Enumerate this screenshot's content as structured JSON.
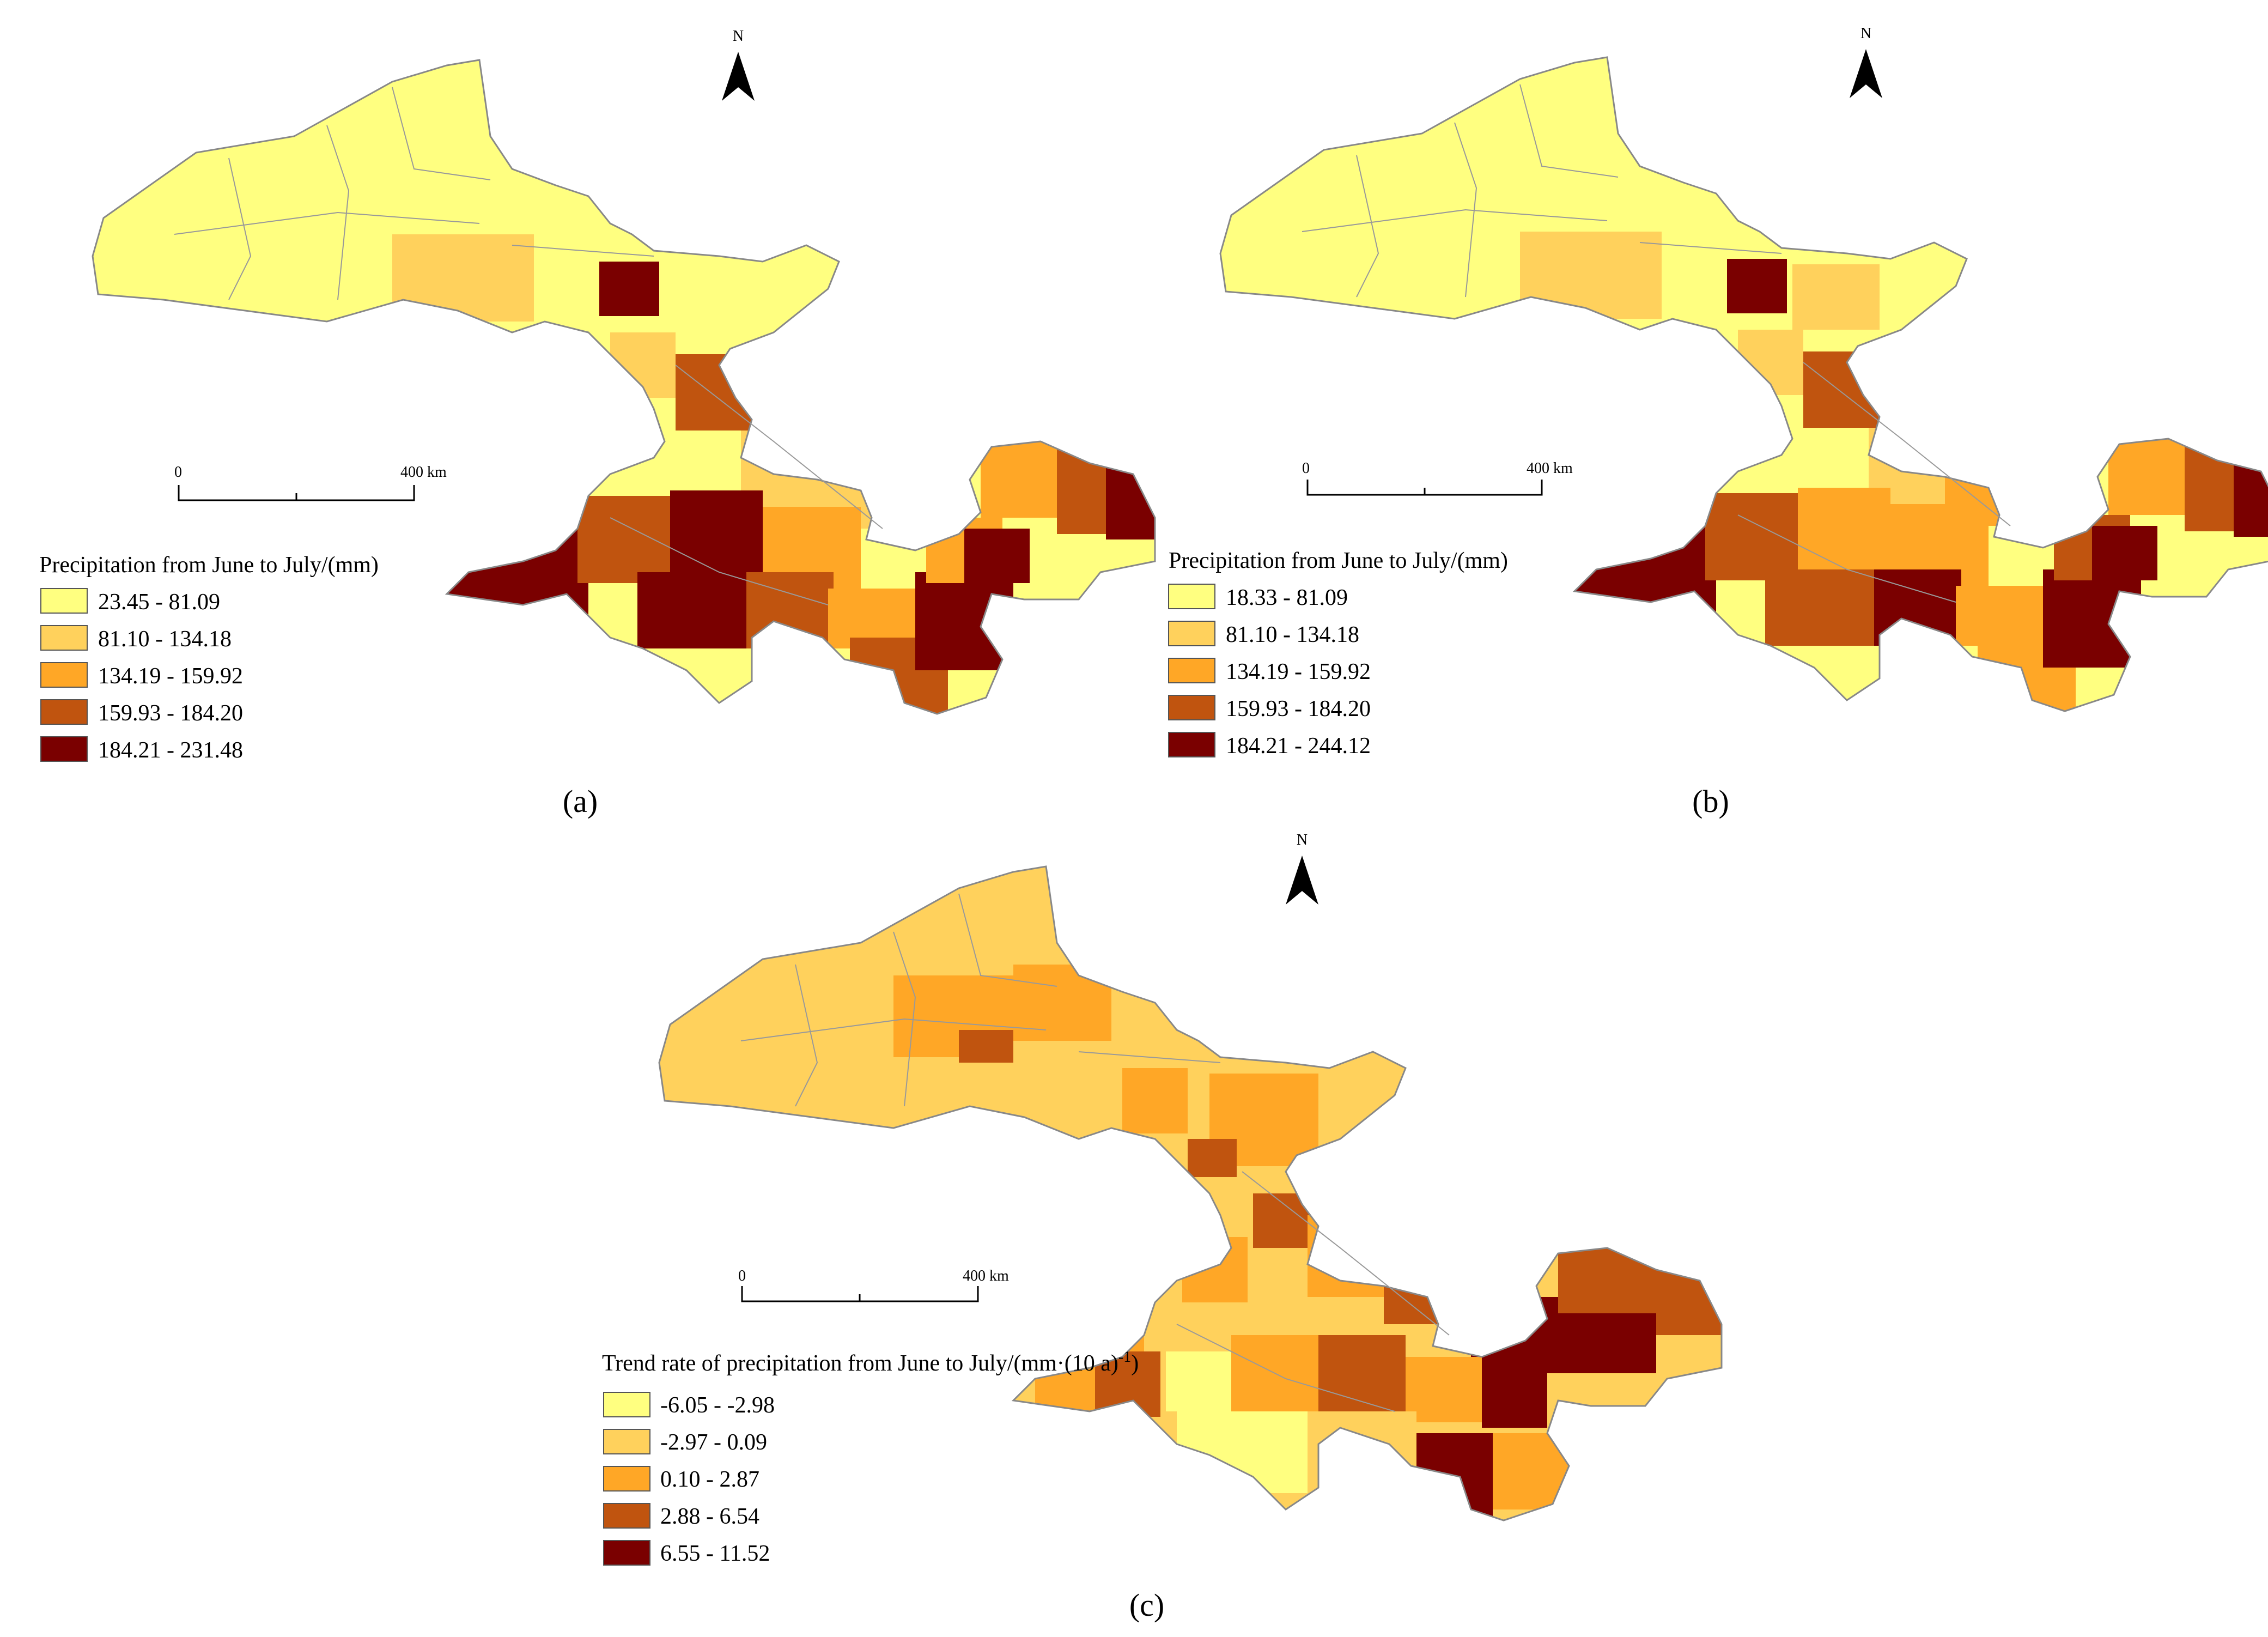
{
  "palette": [
    "#ffff80",
    "#ffd15c",
    "#ffa726",
    "#c0540f",
    "#7a0000"
  ],
  "north_label": "N",
  "scale_start": "0",
  "scale_end": "400 km",
  "panels": [
    {
      "caption": "(a)",
      "legend_title": "Precipitation from June to July/(mm)",
      "classes": [
        "23.45 - 81.09",
        "81.10 - 134.18",
        "134.19 - 159.92",
        "159.93 - 184.20",
        "184.21 - 231.48"
      ]
    },
    {
      "caption": "(b)",
      "legend_title": "Precipitation from June to July/(mm)",
      "classes": [
        "18.33 - 81.09",
        "81.10 - 134.18",
        "134.19 - 159.92",
        "159.93 - 184.20",
        "184.21 - 244.12"
      ]
    },
    {
      "caption": "(c)",
      "legend_title": "Trend rate of precipitation from June to July/(mm·(10 a)",
      "legend_title_sup": "-1",
      "legend_title_end": ")",
      "classes": [
        "-6.05 - -2.98",
        "-2.97 - 0.09",
        "0.10 - 2.87",
        "2.88 - 6.54",
        "6.55 - 11.52"
      ]
    }
  ]
}
